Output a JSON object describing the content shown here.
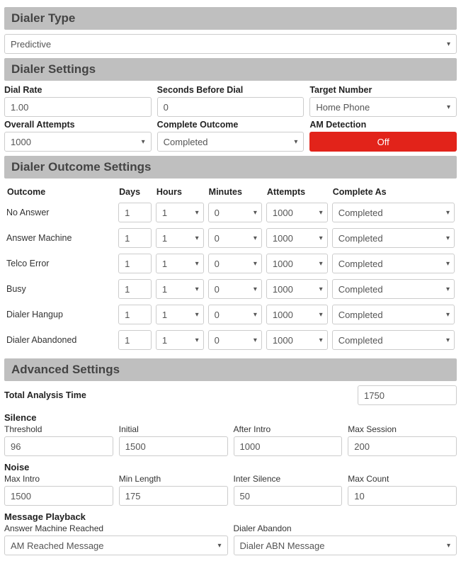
{
  "dialerType": {
    "header": "Dialer Type",
    "value": "Predictive"
  },
  "dialerSettings": {
    "header": "Dialer Settings",
    "dialRate": {
      "label": "Dial Rate",
      "value": "1.00"
    },
    "secondsBeforeDial": {
      "label": "Seconds Before Dial",
      "value": "0"
    },
    "targetNumber": {
      "label": "Target Number",
      "value": "Home Phone"
    },
    "overallAttempts": {
      "label": "Overall Attempts",
      "value": "1000"
    },
    "completeOutcome": {
      "label": "Complete Outcome",
      "value": "Completed"
    },
    "amDetection": {
      "label": "AM Detection",
      "value": "Off"
    }
  },
  "outcomeSettings": {
    "header": "Dialer Outcome Settings",
    "columns": [
      "Outcome",
      "Days",
      "Hours",
      "Minutes",
      "Attempts",
      "Complete As"
    ],
    "rows": [
      {
        "outcome": "No Answer",
        "days": "1",
        "hours": "1",
        "minutes": "0",
        "attempts": "1000",
        "completeAs": "Completed"
      },
      {
        "outcome": "Answer Machine",
        "days": "1",
        "hours": "1",
        "minutes": "0",
        "attempts": "1000",
        "completeAs": "Completed"
      },
      {
        "outcome": "Telco Error",
        "days": "1",
        "hours": "1",
        "minutes": "0",
        "attempts": "1000",
        "completeAs": "Completed"
      },
      {
        "outcome": "Busy",
        "days": "1",
        "hours": "1",
        "minutes": "0",
        "attempts": "1000",
        "completeAs": "Completed"
      },
      {
        "outcome": "Dialer Hangup",
        "days": "1",
        "hours": "1",
        "minutes": "0",
        "attempts": "1000",
        "completeAs": "Completed"
      },
      {
        "outcome": "Dialer Abandoned",
        "days": "1",
        "hours": "1",
        "minutes": "0",
        "attempts": "1000",
        "completeAs": "Completed"
      }
    ],
    "colWidths": {
      "outcome": 150,
      "days": 50,
      "hours": 70,
      "minutes": 78,
      "attempts": 88,
      "completeAs": 170
    }
  },
  "advanced": {
    "header": "Advanced Settings",
    "totalAnalysisTime": {
      "label": "Total Analysis Time",
      "value": "1750"
    },
    "silence": {
      "title": "Silence",
      "threshold": {
        "label": "Threshold",
        "value": "96"
      },
      "initial": {
        "label": "Initial",
        "value": "1500"
      },
      "afterIntro": {
        "label": "After Intro",
        "value": "1000"
      },
      "maxSession": {
        "label": "Max Session",
        "value": "200"
      }
    },
    "noise": {
      "title": "Noise",
      "maxIntro": {
        "label": "Max Intro",
        "value": "1500"
      },
      "minLength": {
        "label": "Min Length",
        "value": "175"
      },
      "interSilence": {
        "label": "Inter Silence",
        "value": "50"
      },
      "maxCount": {
        "label": "Max Count",
        "value": "10"
      }
    },
    "messagePlayback": {
      "title": "Message Playback",
      "answerMachine": {
        "label": "Answer Machine Reached",
        "value": "AM Reached Message"
      },
      "dialerAbandon": {
        "label": "Dialer Abandon",
        "value": "Dialer ABN Message"
      }
    }
  },
  "style": {
    "headerBg": "#bfbfbf",
    "borderColor": "#cccccc",
    "offBtnBg": "#e2231a",
    "offBtnColor": "#ffffff"
  }
}
